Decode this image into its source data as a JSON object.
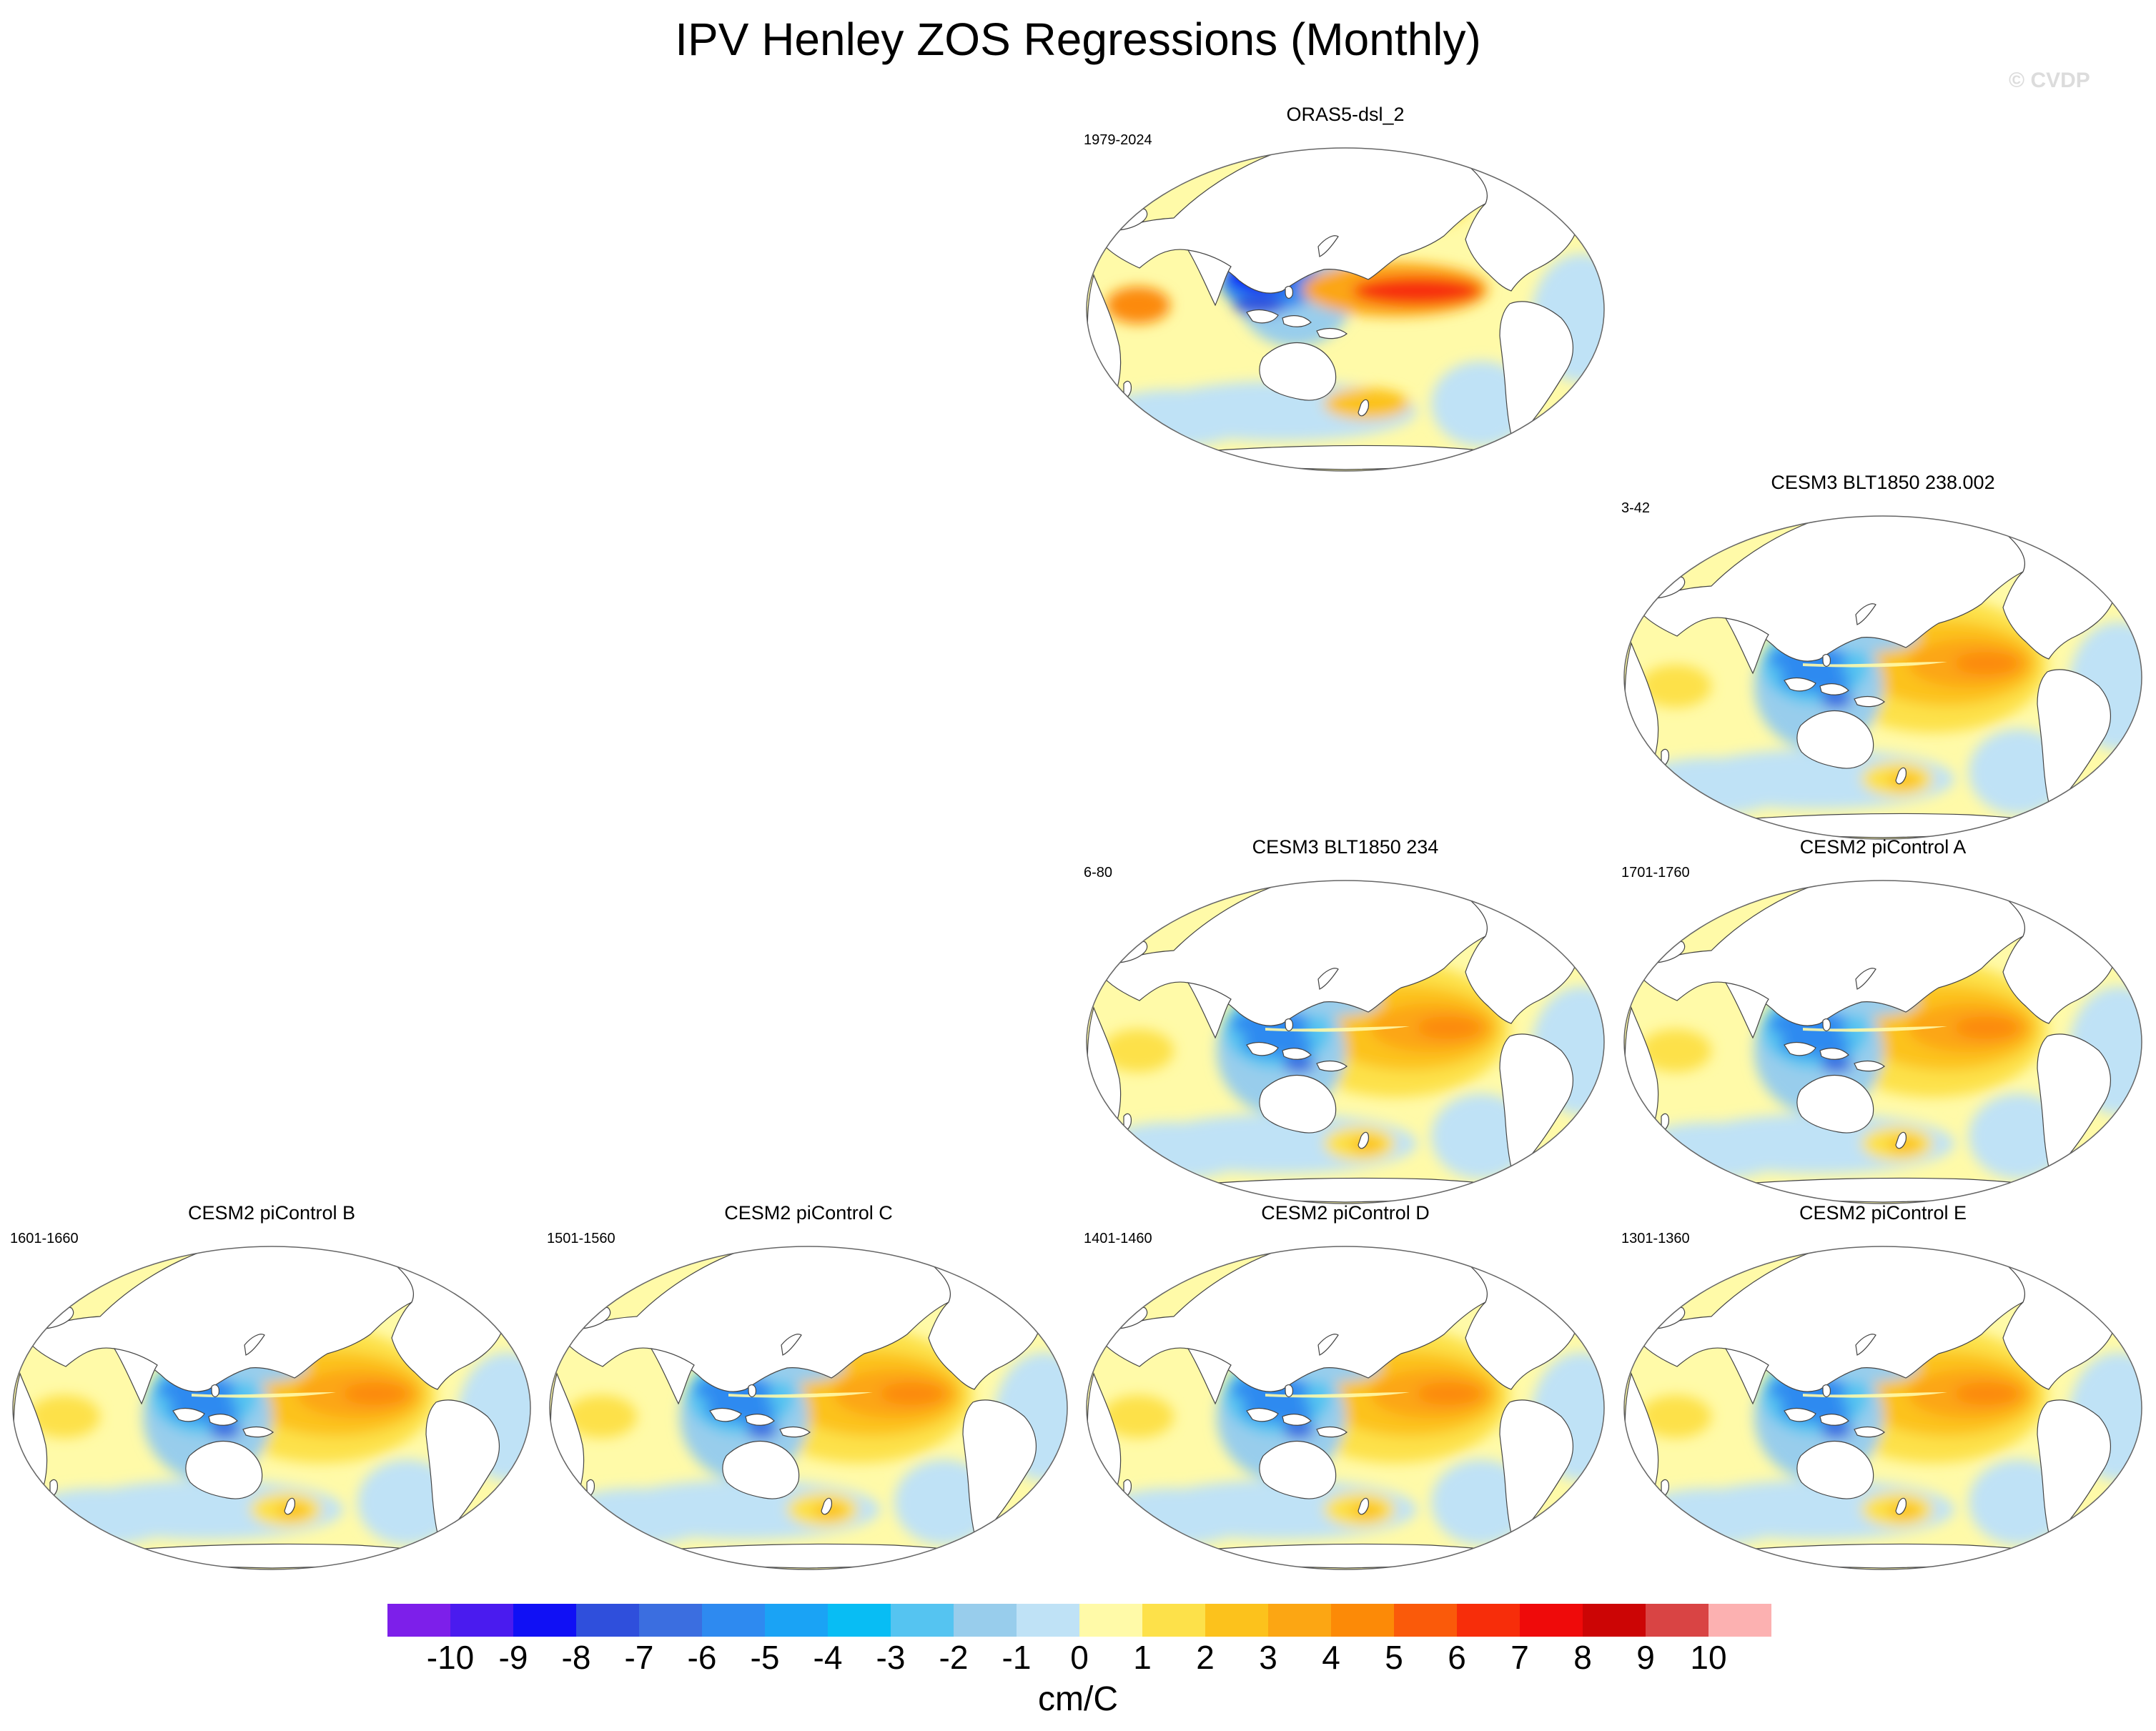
{
  "title": "IPV Henley ZOS Regressions (Monthly)",
  "watermark": "© CVDP",
  "panels": [
    {
      "title": "ORAS5-dsl_2",
      "period": "1979-2024",
      "pattern": "obs"
    },
    {
      "title": "CESM3 BLT1850 238.002",
      "period": "3-42",
      "pattern": "model"
    },
    {
      "title": "CESM3 BLT1850 234",
      "period": "6-80",
      "pattern": "model"
    },
    {
      "title": "CESM2 piControl A",
      "period": "1701-1760",
      "pattern": "model"
    },
    {
      "title": "CESM2 piControl B",
      "period": "1601-1660",
      "pattern": "model"
    },
    {
      "title": "CESM2 piControl C",
      "period": "1501-1560",
      "pattern": "model"
    },
    {
      "title": "CESM2 piControl D",
      "period": "1401-1460",
      "pattern": "model"
    },
    {
      "title": "CESM2 piControl E",
      "period": "1301-1360",
      "pattern": "model"
    }
  ],
  "colorbar": {
    "colors": [
      "#7d1fea",
      "#4a1bef",
      "#1010f5",
      "#2f4fdc",
      "#3b6ee0",
      "#2e8af0",
      "#1aa3f5",
      "#08bdf4",
      "#55c4f1",
      "#98cdec",
      "#bfe2f6",
      "#fffaa8",
      "#fde14a",
      "#fcc21c",
      "#fca613",
      "#fc8a07",
      "#fa5a0a",
      "#f72d0a",
      "#ef0a0a",
      "#cc0505",
      "#d94444",
      "#fcb1b1"
    ],
    "labels": [
      "-10",
      "-9",
      "-8",
      "-7",
      "-6",
      "-5",
      "-4",
      "-3",
      "-2",
      "-1",
      "0",
      "1",
      "2",
      "3",
      "4",
      "5",
      "6",
      "7",
      "8",
      "9",
      "10"
    ]
  },
  "units": "cm/C"
}
